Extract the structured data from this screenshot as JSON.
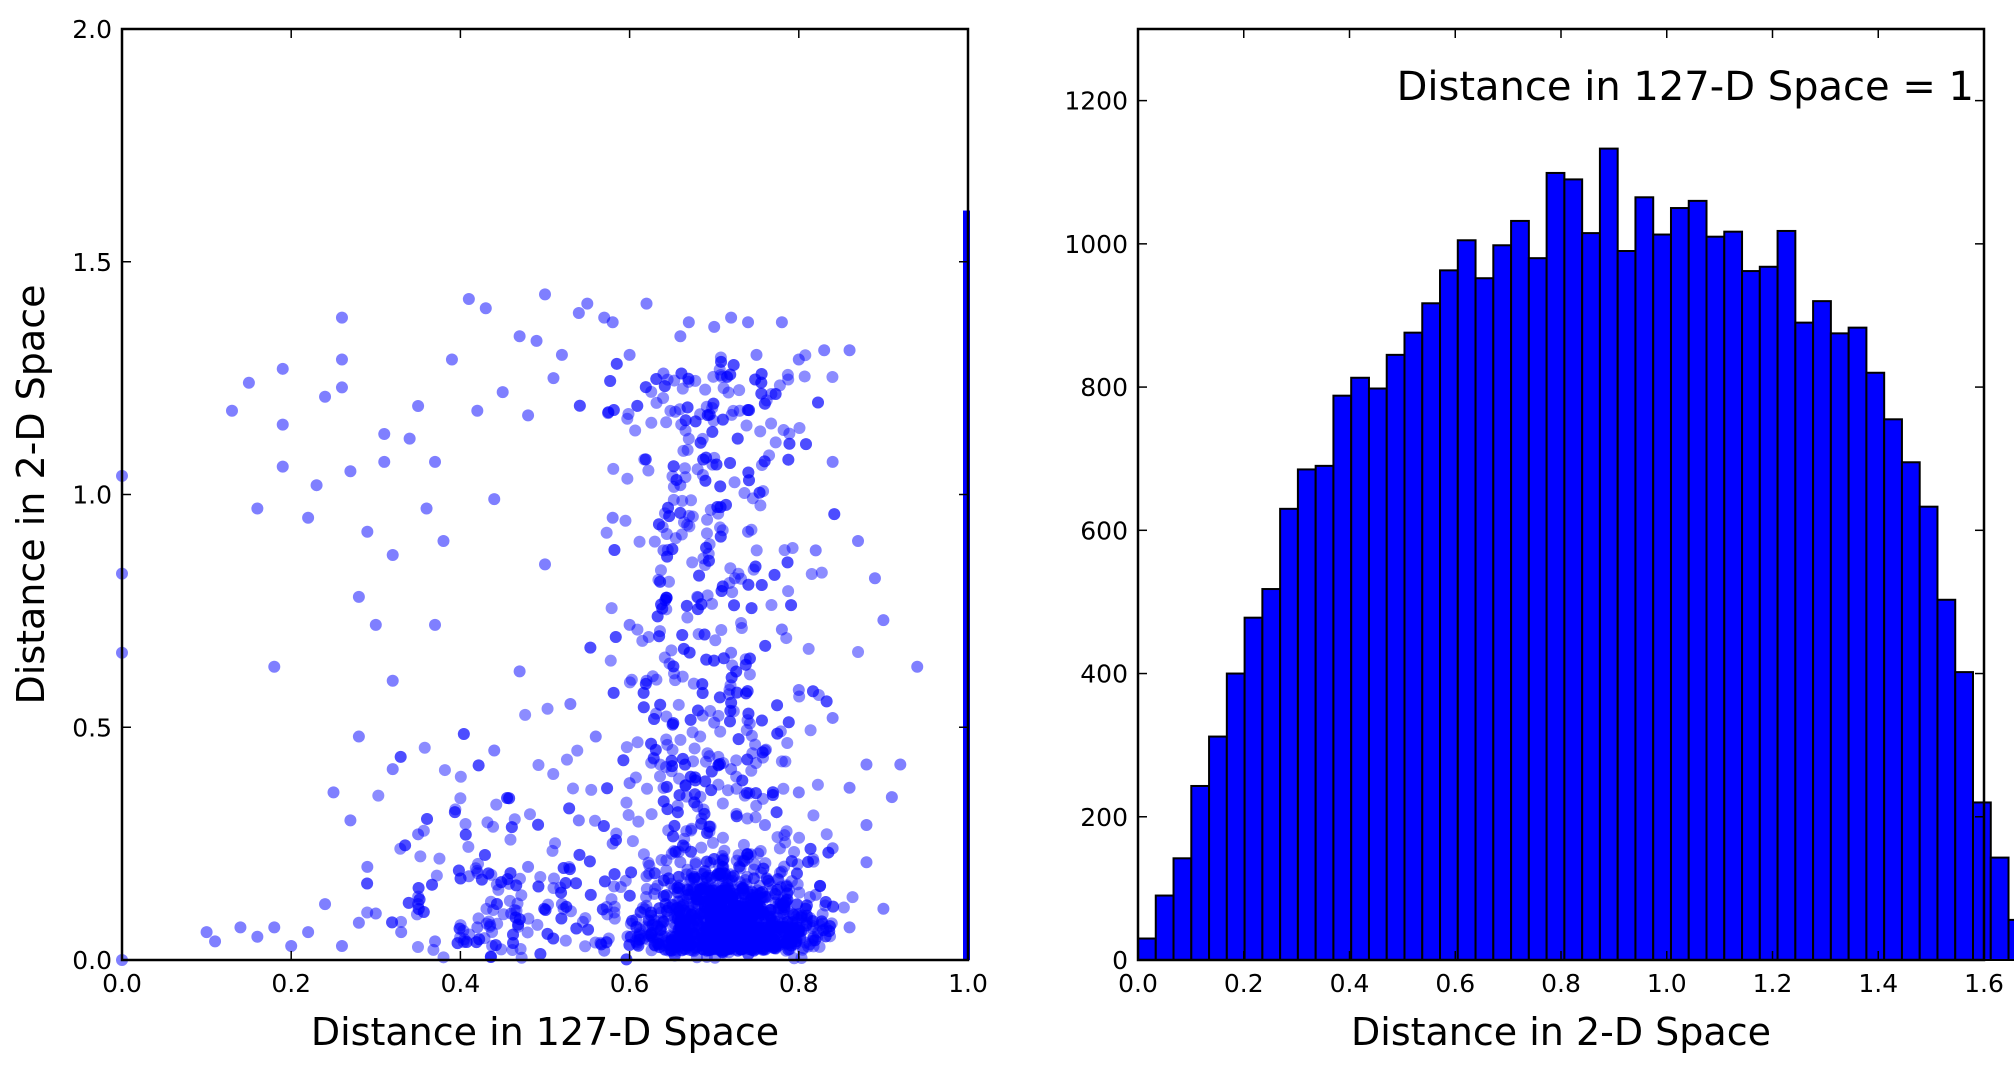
{
  "chart_data": [
    {
      "type": "scatter",
      "xlabel": "Distance in 127-D Space",
      "ylabel": "Distance in 2-D Space",
      "xlim": [
        0.0,
        1.0
      ],
      "ylim": [
        0.0,
        2.0
      ],
      "x_ticks": [
        "0.0",
        "0.2",
        "0.4",
        "0.6",
        "0.8",
        "1.0"
      ],
      "y_ticks": [
        "0.0",
        "0.5",
        "1.0",
        "1.5",
        "2.0"
      ],
      "color": "#0000ff",
      "grid": false,
      "vertical_band": {
        "x": 1.0,
        "y_range": [
          0.0,
          1.61
        ]
      },
      "points": [
        [
          0.0,
          1.04
        ],
        [
          0.0,
          0.83
        ],
        [
          0.0,
          0.66
        ],
        [
          0.0,
          0.0
        ],
        [
          0.13,
          1.18
        ],
        [
          0.15,
          1.24
        ],
        [
          0.16,
          0.97
        ],
        [
          0.19,
          1.27
        ],
        [
          0.19,
          1.06
        ],
        [
          0.19,
          1.15
        ],
        [
          0.18,
          0.63
        ],
        [
          0.22,
          0.95
        ],
        [
          0.23,
          1.02
        ],
        [
          0.24,
          1.21
        ],
        [
          0.26,
          1.38
        ],
        [
          0.26,
          1.29
        ],
        [
          0.26,
          1.23
        ],
        [
          0.27,
          1.05
        ],
        [
          0.28,
          0.78
        ],
        [
          0.28,
          0.48
        ],
        [
          0.29,
          0.92
        ],
        [
          0.31,
          1.13
        ],
        [
          0.31,
          1.07
        ],
        [
          0.3,
          0.72
        ],
        [
          0.32,
          0.87
        ],
        [
          0.32,
          0.6
        ],
        [
          0.32,
          0.41
        ],
        [
          0.34,
          1.12
        ],
        [
          0.35,
          1.19
        ],
        [
          0.36,
          0.97
        ],
        [
          0.37,
          1.07
        ],
        [
          0.37,
          0.72
        ],
        [
          0.38,
          0.9
        ],
        [
          0.39,
          1.29
        ],
        [
          0.41,
          1.42
        ],
        [
          0.42,
          1.18
        ],
        [
          0.43,
          1.4
        ],
        [
          0.44,
          0.99
        ],
        [
          0.45,
          1.22
        ],
        [
          0.47,
          1.34
        ],
        [
          0.48,
          1.17
        ],
        [
          0.49,
          1.33
        ],
        [
          0.5,
          1.43
        ],
        [
          0.51,
          1.25
        ],
        [
          0.52,
          1.3
        ],
        [
          0.54,
          1.39
        ],
        [
          0.55,
          1.41
        ],
        [
          0.57,
          1.38
        ],
        [
          0.58,
          1.37
        ],
        [
          0.6,
          1.3
        ],
        [
          0.62,
          1.41
        ],
        [
          0.64,
          1.26
        ],
        [
          0.66,
          1.34
        ],
        [
          0.67,
          1.37
        ],
        [
          0.7,
          1.36
        ],
        [
          0.72,
          1.38
        ],
        [
          0.74,
          1.37
        ],
        [
          0.75,
          1.3
        ],
        [
          0.78,
          1.37
        ],
        [
          0.8,
          1.29
        ],
        [
          0.83,
          1.31
        ],
        [
          0.86,
          1.31
        ],
        [
          0.84,
          1.07
        ],
        [
          0.87,
          0.9
        ],
        [
          0.89,
          0.82
        ],
        [
          0.9,
          0.73
        ],
        [
          0.94,
          0.63
        ],
        [
          0.92,
          0.42
        ],
        [
          0.91,
          0.35
        ],
        [
          0.88,
          0.29
        ],
        [
          0.1,
          0.06
        ],
        [
          0.11,
          0.04
        ],
        [
          0.14,
          0.07
        ],
        [
          0.16,
          0.05
        ],
        [
          0.18,
          0.07
        ],
        [
          0.2,
          0.03
        ],
        [
          0.22,
          0.06
        ],
        [
          0.24,
          0.12
        ],
        [
          0.26,
          0.03
        ],
        [
          0.28,
          0.08
        ],
        [
          0.3,
          0.1
        ],
        [
          0.33,
          0.06
        ],
        [
          0.35,
          0.12
        ],
        [
          0.37,
          0.04
        ],
        [
          0.25,
          0.36
        ],
        [
          0.27,
          0.3
        ],
        [
          0.29,
          0.2
        ],
        [
          0.35,
          0.27
        ],
        [
          0.41,
          0.18
        ],
        [
          0.44,
          0.45
        ],
        [
          0.47,
          0.62
        ],
        [
          0.5,
          0.85
        ],
        [
          0.53,
          0.55
        ],
        [
          0.56,
          0.48
        ],
        [
          0.58,
          0.95
        ],
        [
          0.6,
          0.72
        ],
        [
          0.62,
          0.6
        ],
        [
          0.64,
          0.88
        ],
        [
          0.66,
          1.02
        ],
        [
          0.68,
          0.78
        ],
        [
          0.7,
          0.51
        ],
        [
          0.72,
          0.66
        ],
        [
          0.74,
          0.92
        ],
        [
          0.76,
          0.45
        ],
        [
          0.78,
          0.71
        ],
        [
          0.8,
          0.58
        ],
        [
          0.82,
          0.88
        ],
        [
          0.84,
          0.52
        ],
        [
          0.86,
          0.37
        ],
        [
          0.88,
          0.21
        ],
        [
          0.9,
          0.11
        ],
        [
          0.58,
          0.25
        ],
        [
          0.62,
          0.18
        ],
        [
          0.66,
          0.21
        ],
        [
          0.7,
          0.15
        ],
        [
          0.74,
          0.22
        ],
        [
          0.78,
          0.19
        ],
        [
          0.82,
          0.14
        ],
        [
          0.52,
          0.12
        ],
        [
          0.46,
          0.1
        ],
        [
          0.42,
          0.07
        ],
        [
          0.48,
          0.2
        ],
        [
          0.54,
          0.3
        ],
        [
          0.6,
          0.38
        ],
        [
          0.68,
          0.33
        ],
        [
          0.72,
          0.41
        ],
        [
          0.76,
          0.29
        ],
        [
          0.8,
          0.36
        ],
        [
          0.84,
          0.24
        ],
        [
          0.88,
          0.42
        ],
        [
          0.65,
          0.05
        ],
        [
          0.7,
          0.03
        ],
        [
          0.75,
          0.08
        ],
        [
          0.8,
          0.06
        ],
        [
          0.86,
          0.07
        ],
        [
          0.57,
          0.02
        ]
      ]
    },
    {
      "type": "bar",
      "xlabel": "Distance in 2-D Space",
      "ylabel": "",
      "annotation": "Distance in 127-D Space = 1",
      "xlim": [
        0.0,
        1.6
      ],
      "ylim": [
        0,
        1300
      ],
      "x_ticks": [
        "0.0",
        "0.2",
        "0.4",
        "0.6",
        "0.8",
        "1.0",
        "1.2",
        "1.4",
        "1.6"
      ],
      "y_ticks": [
        "0",
        "200",
        "400",
        "600",
        "800",
        "1000",
        "1200"
      ],
      "color": "#0000ff",
      "edge_color": "#000000",
      "grid": false,
      "bin_width": 0.0336,
      "values": [
        30,
        90,
        142,
        243,
        312,
        400,
        478,
        518,
        630,
        685,
        690,
        788,
        813,
        798,
        845,
        876,
        917,
        963,
        1005,
        952,
        998,
        1032,
        980,
        1099,
        1090,
        1015,
        1133,
        990,
        1065,
        1013,
        1050,
        1060,
        1010,
        1017,
        962,
        968,
        1018,
        890,
        920,
        875,
        883,
        820,
        755,
        695,
        633,
        503,
        402,
        220,
        143,
        56
      ]
    }
  ]
}
